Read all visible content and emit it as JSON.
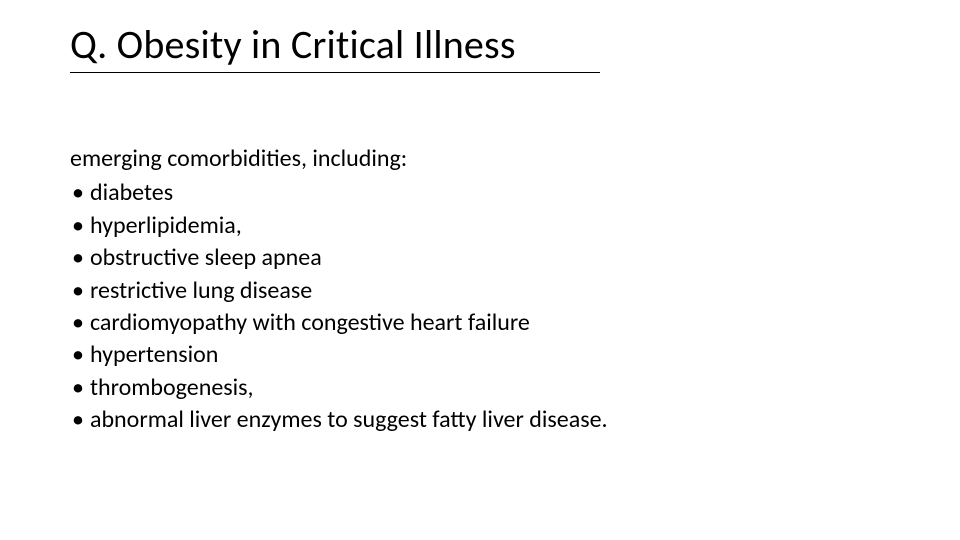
{
  "slide": {
    "title": "Q. Obesity in Critical Illness",
    "title_fontsize": 40,
    "body_fontsize": 24,
    "text_color": "#000000",
    "background_color": "#ffffff",
    "underline_color": "#000000",
    "lead": "emerging comorbidities, including:",
    "bullet_char": "•",
    "bullets": [
      "diabetes",
      "hyperlipidemia,",
      "obstructive sleep apnea",
      "restrictive lung disease",
      "cardiomyopathy with congestive heart failure",
      "hypertension",
      "thrombogenesis,",
      "abnormal liver enzymes to suggest fatty liver disease."
    ]
  }
}
